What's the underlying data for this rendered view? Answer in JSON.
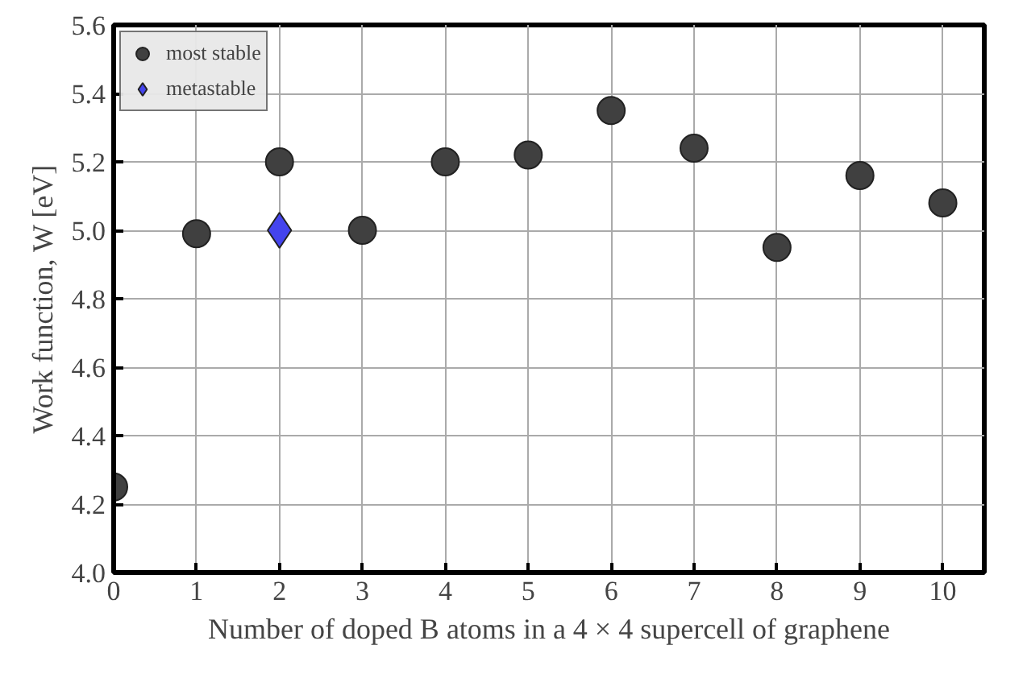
{
  "chart_data": {
    "type": "scatter",
    "xlabel": "Number of doped B atoms in a 4 × 4 supercell of graphene",
    "ylabel": "Work function, W [eV]",
    "xlim": [
      0,
      10.5
    ],
    "ylim": [
      4.0,
      5.6
    ],
    "xticks": [
      0,
      1,
      2,
      3,
      4,
      5,
      6,
      7,
      8,
      9,
      10
    ],
    "yticks": [
      {
        "value": 4.0,
        "label": "4.0"
      },
      {
        "value": 4.2,
        "label": "4.2"
      },
      {
        "value": 4.4,
        "label": "4.4"
      },
      {
        "value": 4.6,
        "label": "4.6"
      },
      {
        "value": 4.8,
        "label": "4.8"
      },
      {
        "value": 5.0,
        "label": "5.0"
      },
      {
        "value": 5.2,
        "label": "5.2"
      },
      {
        "value": 5.4,
        "label": "5.4"
      },
      {
        "value": 5.6,
        "label": "5.6"
      }
    ],
    "grid": true,
    "legend": "top left",
    "series": [
      {
        "name": "most stable",
        "color": "#404040",
        "marker": "circle",
        "x": [
          0,
          1,
          2,
          3,
          4,
          5,
          6,
          7,
          8,
          9,
          10
        ],
        "values": [
          4.25,
          4.99,
          5.2,
          5.0,
          5.2,
          5.22,
          5.35,
          5.24,
          4.95,
          5.16,
          5.08
        ]
      },
      {
        "name": "metastable",
        "color": "#4444ee",
        "marker": "diamond",
        "x": [
          2
        ],
        "values": [
          5.0
        ]
      }
    ]
  }
}
